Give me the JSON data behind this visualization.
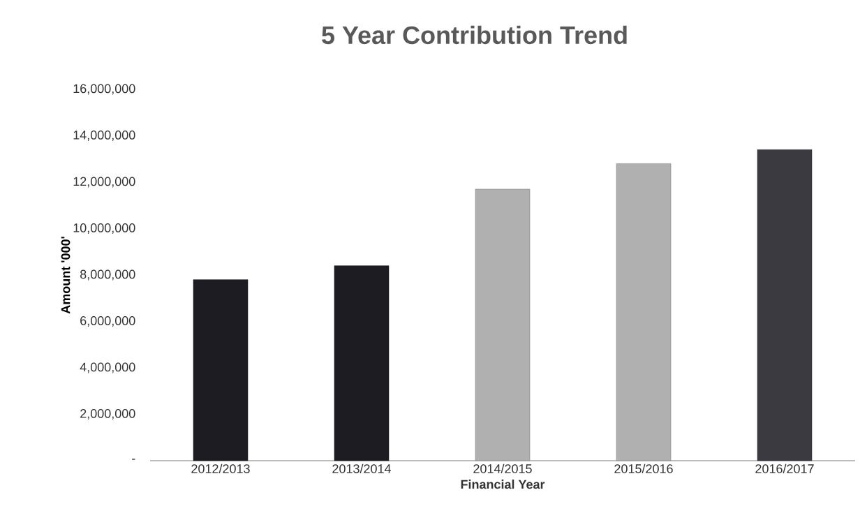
{
  "chart_data": {
    "type": "bar",
    "title": "5 Year Contribution Trend",
    "xlabel": "Financial Year",
    "ylabel": "Amount '000'",
    "categories": [
      "2012/2013",
      "2013/2014",
      "2014/2015",
      "2015/2016",
      "2016/2017"
    ],
    "values": [
      7800000,
      8400000,
      11700000,
      12800000,
      13400000
    ],
    "colors": [
      "#1c1c22",
      "#1c1c22",
      "#b0b0b0",
      "#b0b0b0",
      "#3a3a40"
    ],
    "ylim": [
      0,
      16000000
    ],
    "yticks": [
      {
        "value": 0,
        "label": "-"
      },
      {
        "value": 2000000,
        "label": "2,000,000"
      },
      {
        "value": 4000000,
        "label": "4,000,000"
      },
      {
        "value": 6000000,
        "label": "6,000,000"
      },
      {
        "value": 8000000,
        "label": "8,000,000"
      },
      {
        "value": 10000000,
        "label": "10,000,000"
      },
      {
        "value": 12000000,
        "label": "12,000,000"
      },
      {
        "value": 14000000,
        "label": "14,000,000"
      },
      {
        "value": 16000000,
        "label": "16,000,000"
      }
    ],
    "grid": false
  }
}
